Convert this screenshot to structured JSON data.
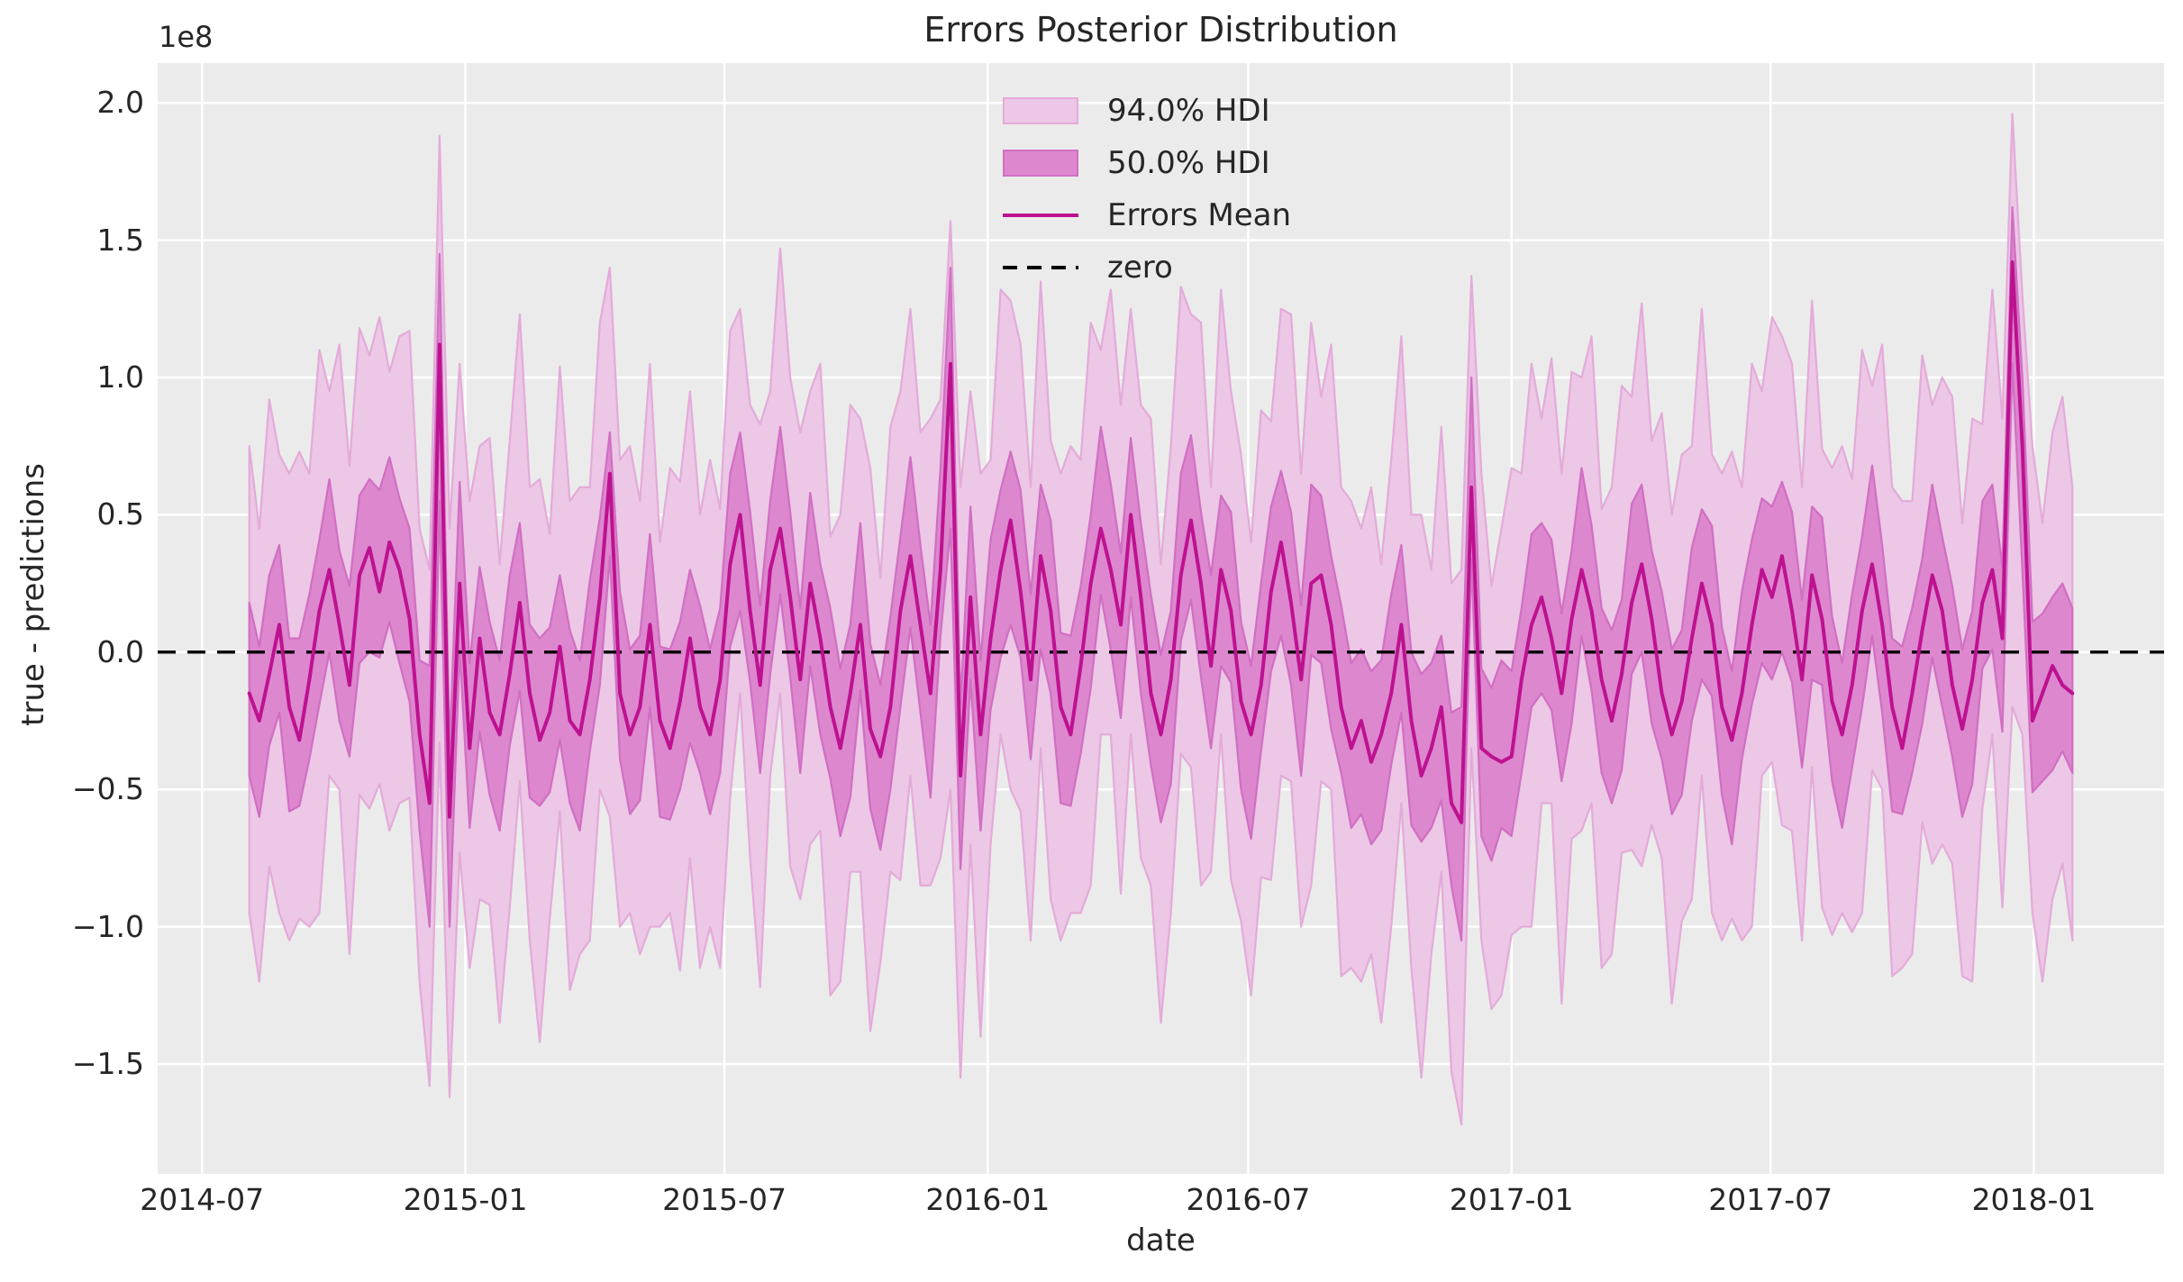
{
  "style": {
    "figure_bg": "#ffffff",
    "axes_bg": "#ebebeb",
    "grid_color": "#ffffff",
    "text_color": "#262626"
  },
  "chart_data": {
    "type": "line",
    "title": "Errors Posterior Distribution",
    "xlabel": "date",
    "ylabel": "true - predictions",
    "y_offset_text": "1e8",
    "value_unit": "1e8",
    "grid": true,
    "legend_position": "upper center",
    "x_axis_start_date": "2014-05-31",
    "xlim_days": [
      0,
      1402
    ],
    "ylim": [
      -1.9,
      2.145
    ],
    "x_start_date": "2014-08-03",
    "x_start_day_offset": 64,
    "x_step_days": 7,
    "n_points": 183,
    "x_ticks": [
      {
        "label": "2014-07",
        "day": 31
      },
      {
        "label": "2015-01",
        "day": 215
      },
      {
        "label": "2015-07",
        "day": 396
      },
      {
        "label": "2016-01",
        "day": 580
      },
      {
        "label": "2016-07",
        "day": 762
      },
      {
        "label": "2017-01",
        "day": 946
      },
      {
        "label": "2017-07",
        "day": 1127
      },
      {
        "label": "2018-01",
        "day": 1311
      }
    ],
    "y_ticks": [
      {
        "label": "2.0",
        "value": 2.0
      },
      {
        "label": "1.5",
        "value": 1.5
      },
      {
        "label": "1.0",
        "value": 1.0
      },
      {
        "label": "0.5",
        "value": 0.5
      },
      {
        "label": "0.0",
        "value": 0.0
      },
      {
        "label": "−0.5",
        "value": -0.5
      },
      {
        "label": "−1.0",
        "value": -1.0
      },
      {
        "label": "−1.5",
        "value": -1.5
      }
    ],
    "series": [
      {
        "name": "94.0% HDI",
        "kind": "band",
        "fill": "#ecc7e6",
        "edge": "#e3abd9"
      },
      {
        "name": "50.0% HDI",
        "kind": "band",
        "fill": "#dd87cf",
        "edge": "#d06fc2"
      },
      {
        "name": "Errors Mean",
        "kind": "line",
        "color": "#bd1290"
      },
      {
        "name": "zero",
        "kind": "hline",
        "y": 0,
        "color": "#000000",
        "style": "dashed"
      }
    ],
    "mean": [
      -0.15,
      -0.25,
      -0.08,
      0.1,
      -0.2,
      -0.32,
      -0.1,
      0.15,
      0.3,
      0.1,
      -0.12,
      0.28,
      0.38,
      0.22,
      0.4,
      0.3,
      0.12,
      -0.3,
      -0.55,
      1.12,
      -0.6,
      0.25,
      -0.35,
      0.05,
      -0.22,
      -0.3,
      -0.08,
      0.18,
      -0.15,
      -0.32,
      -0.22,
      0.02,
      -0.25,
      -0.3,
      -0.1,
      0.2,
      0.65,
      -0.15,
      -0.3,
      -0.2,
      0.1,
      -0.25,
      -0.35,
      -0.18,
      0.05,
      -0.2,
      -0.3,
      -0.1,
      0.32,
      0.5,
      0.15,
      -0.12,
      0.3,
      0.45,
      0.2,
      -0.1,
      0.25,
      0.05,
      -0.2,
      -0.35,
      -0.15,
      0.1,
      -0.28,
      -0.38,
      -0.2,
      0.15,
      0.35,
      0.1,
      -0.15,
      0.3,
      1.05,
      -0.45,
      0.2,
      -0.3,
      0.05,
      0.3,
      0.48,
      0.22,
      -0.1,
      0.35,
      0.15,
      -0.2,
      -0.3,
      -0.05,
      0.25,
      0.45,
      0.3,
      0.1,
      0.5,
      0.2,
      -0.15,
      -0.3,
      -0.1,
      0.28,
      0.48,
      0.25,
      -0.05,
      0.3,
      0.15,
      -0.18,
      -0.3,
      -0.12,
      0.22,
      0.4,
      0.18,
      -0.1,
      0.25,
      0.28,
      0.1,
      -0.2,
      -0.35,
      -0.25,
      -0.4,
      -0.3,
      -0.15,
      0.1,
      -0.25,
      -0.45,
      -0.35,
      -0.2,
      -0.55,
      -0.62,
      0.6,
      -0.35,
      -0.38,
      -0.4,
      -0.38,
      -0.1,
      0.1,
      0.2,
      0.05,
      -0.15,
      0.12,
      0.3,
      0.15,
      -0.1,
      -0.25,
      -0.08,
      0.18,
      0.32,
      0.12,
      -0.15,
      -0.3,
      -0.18,
      0.05,
      0.25,
      0.1,
      -0.2,
      -0.32,
      -0.15,
      0.1,
      0.3,
      0.2,
      0.35,
      0.15,
      -0.1,
      0.28,
      0.12,
      -0.18,
      -0.3,
      -0.12,
      0.15,
      0.32,
      0.1,
      -0.2,
      -0.35,
      -0.15,
      0.08,
      0.28,
      0.15,
      -0.12,
      -0.28,
      -0.1,
      0.18,
      0.3,
      0.05,
      1.42,
      0.75,
      -0.25,
      -0.15,
      -0.05,
      -0.12,
      -0.15
    ],
    "hdi50_offset_lower": [
      0.3,
      0.35,
      0.26,
      0.32,
      0.38,
      0.24,
      0.29,
      0.34,
      0.3,
      0.35,
      0.26,
      0.32,
      0.38,
      0.24,
      0.29,
      0.34,
      0.3,
      0.35,
      0.45,
      0.57,
      0.4,
      0.24,
      0.29,
      0.34,
      0.3,
      0.35,
      0.26,
      0.32,
      0.38,
      0.24,
      0.29,
      0.34,
      0.3,
      0.35,
      0.26,
      0.32,
      0.3,
      0.24,
      0.29,
      0.34,
      0.3,
      0.35,
      0.26,
      0.32,
      0.38,
      0.24,
      0.29,
      0.34,
      0.3,
      0.35,
      0.26,
      0.32,
      0.38,
      0.24,
      0.29,
      0.34,
      0.3,
      0.35,
      0.26,
      0.32,
      0.38,
      0.24,
      0.29,
      0.34,
      0.3,
      0.35,
      0.26,
      0.32,
      0.38,
      0.24,
      0.6,
      0.34,
      0.3,
      0.35,
      0.26,
      0.32,
      0.38,
      0.24,
      0.29,
      0.34,
      0.3,
      0.35,
      0.26,
      0.32,
      0.38,
      0.24,
      0.29,
      0.34,
      0.3,
      0.35,
      0.26,
      0.32,
      0.38,
      0.24,
      0.29,
      0.34,
      0.3,
      0.35,
      0.26,
      0.32,
      0.38,
      0.24,
      0.29,
      0.34,
      0.3,
      0.35,
      0.26,
      0.32,
      0.38,
      0.24,
      0.29,
      0.34,
      0.3,
      0.35,
      0.26,
      0.32,
      0.38,
      0.24,
      0.29,
      0.34,
      0.3,
      0.43,
      0.26,
      0.32,
      0.38,
      0.24,
      0.29,
      0.34,
      0.3,
      0.35,
      0.26,
      0.32,
      0.38,
      0.24,
      0.29,
      0.34,
      0.3,
      0.35,
      0.26,
      0.32,
      0.38,
      0.24,
      0.29,
      0.34,
      0.3,
      0.35,
      0.26,
      0.32,
      0.38,
      0.24,
      0.29,
      0.34,
      0.3,
      0.35,
      0.26,
      0.32,
      0.38,
      0.24,
      0.29,
      0.34,
      0.3,
      0.35,
      0.26,
      0.32,
      0.38,
      0.24,
      0.29,
      0.34,
      0.3,
      0.35,
      0.26,
      0.32,
      0.38,
      0.24,
      0.29,
      0.34,
      0.37,
      0.45,
      0.26,
      0.32,
      0.38,
      0.24,
      0.29
    ],
    "hdi50_offset_upper": [
      0.33,
      0.27,
      0.36,
      0.29,
      0.25,
      0.37,
      0.31,
      0.26,
      0.33,
      0.27,
      0.36,
      0.29,
      0.25,
      0.37,
      0.31,
      0.26,
      0.33,
      0.27,
      0.5,
      0.33,
      0.25,
      0.37,
      0.31,
      0.26,
      0.33,
      0.27,
      0.36,
      0.29,
      0.25,
      0.37,
      0.31,
      0.26,
      0.33,
      0.27,
      0.36,
      0.29,
      0.15,
      0.37,
      0.31,
      0.26,
      0.33,
      0.27,
      0.36,
      0.29,
      0.25,
      0.37,
      0.31,
      0.26,
      0.33,
      0.3,
      0.36,
      0.29,
      0.25,
      0.37,
      0.31,
      0.26,
      0.33,
      0.27,
      0.36,
      0.29,
      0.25,
      0.37,
      0.31,
      0.26,
      0.33,
      0.27,
      0.36,
      0.29,
      0.25,
      0.37,
      0.35,
      0.26,
      0.33,
      0.27,
      0.36,
      0.29,
      0.25,
      0.37,
      0.31,
      0.26,
      0.33,
      0.27,
      0.36,
      0.29,
      0.25,
      0.37,
      0.31,
      0.26,
      0.28,
      0.27,
      0.36,
      0.29,
      0.25,
      0.37,
      0.31,
      0.26,
      0.33,
      0.27,
      0.36,
      0.29,
      0.25,
      0.37,
      0.31,
      0.26,
      0.33,
      0.27,
      0.36,
      0.29,
      0.25,
      0.37,
      0.31,
      0.26,
      0.33,
      0.27,
      0.36,
      0.29,
      0.25,
      0.37,
      0.31,
      0.26,
      0.33,
      0.42,
      0.4,
      0.29,
      0.25,
      0.37,
      0.31,
      0.26,
      0.33,
      0.27,
      0.36,
      0.29,
      0.25,
      0.37,
      0.31,
      0.26,
      0.33,
      0.27,
      0.36,
      0.29,
      0.25,
      0.37,
      0.31,
      0.26,
      0.33,
      0.27,
      0.36,
      0.29,
      0.25,
      0.37,
      0.31,
      0.26,
      0.33,
      0.27,
      0.36,
      0.29,
      0.25,
      0.37,
      0.31,
      0.26,
      0.33,
      0.27,
      0.36,
      0.29,
      0.25,
      0.37,
      0.31,
      0.26,
      0.33,
      0.27,
      0.36,
      0.29,
      0.25,
      0.37,
      0.31,
      0.26,
      0.2,
      0.25,
      0.36,
      0.29,
      0.25,
      0.37,
      0.31
    ],
    "hdi94_offset_lower": [
      0.8,
      0.95,
      0.7,
      1.05,
      0.85,
      0.65,
      0.9,
      1.1,
      0.75,
      0.6,
      0.98,
      0.8,
      0.95,
      0.7,
      1.05,
      0.85,
      0.65,
      0.9,
      1.03,
      1.45,
      1.02,
      0.98,
      0.8,
      0.95,
      0.7,
      1.05,
      0.85,
      0.65,
      0.9,
      1.1,
      0.75,
      0.6,
      0.98,
      0.8,
      0.95,
      0.7,
      1.25,
      0.85,
      0.65,
      0.9,
      1.1,
      0.75,
      0.6,
      0.98,
      0.8,
      0.95,
      0.7,
      1.05,
      0.85,
      0.65,
      0.9,
      1.1,
      0.75,
      0.6,
      0.98,
      0.8,
      0.95,
      0.7,
      1.05,
      0.85,
      0.65,
      0.9,
      1.1,
      0.75,
      0.6,
      0.98,
      0.8,
      0.95,
      0.7,
      1.05,
      1.55,
      1.1,
      0.9,
      1.1,
      0.75,
      0.6,
      0.98,
      0.8,
      0.95,
      0.7,
      1.05,
      0.85,
      0.65,
      0.9,
      1.1,
      0.75,
      0.6,
      0.98,
      0.8,
      0.95,
      0.7,
      1.05,
      0.85,
      0.65,
      0.9,
      1.1,
      0.75,
      0.6,
      0.98,
      0.8,
      0.95,
      0.7,
      1.05,
      0.85,
      0.65,
      0.9,
      1.1,
      0.75,
      0.6,
      0.98,
      0.8,
      0.95,
      0.7,
      1.05,
      0.85,
      0.65,
      0.9,
      1.1,
      0.75,
      0.6,
      0.98,
      1.1,
      0.95,
      0.7,
      0.92,
      0.85,
      0.65,
      0.9,
      1.1,
      0.75,
      0.6,
      1.13,
      0.8,
      0.95,
      0.7,
      1.05,
      0.85,
      0.65,
      0.9,
      1.1,
      0.75,
      0.6,
      0.98,
      0.8,
      0.95,
      0.7,
      1.05,
      0.85,
      0.65,
      0.9,
      1.1,
      0.75,
      0.6,
      0.98,
      0.8,
      0.95,
      0.7,
      1.05,
      0.85,
      0.65,
      0.9,
      1.1,
      0.75,
      0.6,
      0.98,
      0.8,
      0.95,
      0.7,
      1.05,
      0.85,
      0.65,
      0.9,
      1.1,
      0.75,
      0.6,
      0.98,
      1.62,
      1.05,
      0.7,
      1.05,
      0.85,
      0.65,
      0.9
    ],
    "hdi94_offset_upper": [
      0.9,
      0.7,
      1.0,
      0.62,
      0.85,
      1.05,
      0.75,
      0.95,
      0.65,
      1.02,
      0.8,
      0.9,
      0.7,
      1.0,
      0.62,
      0.85,
      1.05,
      0.75,
      0.85,
      0.76,
      1.05,
      0.8,
      0.9,
      0.7,
      1.0,
      0.62,
      0.85,
      1.05,
      0.75,
      0.95,
      0.65,
      1.02,
      0.8,
      0.9,
      0.7,
      1.0,
      0.75,
      0.85,
      1.05,
      0.75,
      0.95,
      0.65,
      1.02,
      0.8,
      0.9,
      0.7,
      1.0,
      0.62,
      0.85,
      0.75,
      0.75,
      0.95,
      0.65,
      1.02,
      0.8,
      0.9,
      0.7,
      1.0,
      0.62,
      0.85,
      1.05,
      0.75,
      0.95,
      0.65,
      1.02,
      0.8,
      0.9,
      0.7,
      1.0,
      0.62,
      0.52,
      1.05,
      0.75,
      0.95,
      0.65,
      1.02,
      0.8,
      0.9,
      0.7,
      1.0,
      0.62,
      0.85,
      1.05,
      0.75,
      0.95,
      0.65,
      1.02,
      0.8,
      0.75,
      0.7,
      1.0,
      0.62,
      0.85,
      1.05,
      0.75,
      0.95,
      0.65,
      1.02,
      0.8,
      0.9,
      0.7,
      1.0,
      0.62,
      0.85,
      1.05,
      0.75,
      0.95,
      0.65,
      1.02,
      0.8,
      0.9,
      0.7,
      1.0,
      0.62,
      0.85,
      1.05,
      0.75,
      0.95,
      0.65,
      1.02,
      0.8,
      0.92,
      0.77,
      1.0,
      0.62,
      0.85,
      1.05,
      0.75,
      0.95,
      0.65,
      1.02,
      0.8,
      0.9,
      0.7,
      1.0,
      0.62,
      0.85,
      1.05,
      0.75,
      0.95,
      0.65,
      1.02,
      0.8,
      0.9,
      0.7,
      1.0,
      0.62,
      0.85,
      1.05,
      0.75,
      0.95,
      0.65,
      1.02,
      0.8,
      0.9,
      0.7,
      1.0,
      0.62,
      0.85,
      1.05,
      0.75,
      0.95,
      0.65,
      1.02,
      0.8,
      0.9,
      0.7,
      1.0,
      0.62,
      0.85,
      1.05,
      0.75,
      0.95,
      0.65,
      1.02,
      0.8,
      0.54,
      0.55,
      1.0,
      0.62,
      0.85,
      1.05,
      0.75
    ]
  }
}
